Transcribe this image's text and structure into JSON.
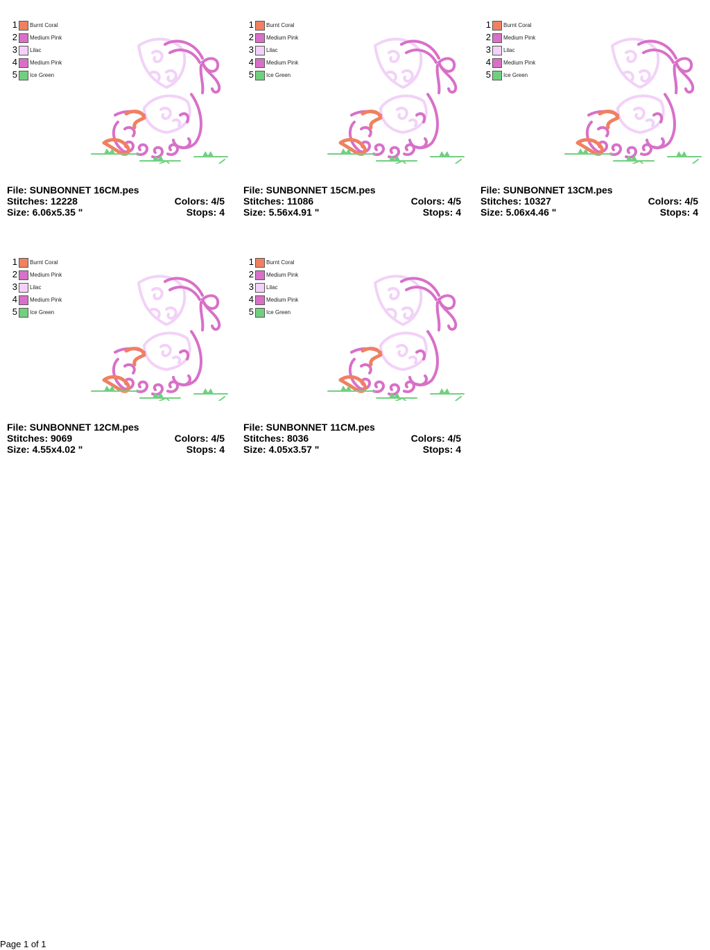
{
  "labels": {
    "file": "File:",
    "stitches": "Stitches:",
    "size": "Size:",
    "colors": "Colors:",
    "stops": "Stops:"
  },
  "designs": [
    {
      "file": "SUNBONNET 16CM.pes",
      "stitches": "12228",
      "size": "6.06x5.35 \"",
      "colors": "4/5",
      "stops": "4"
    },
    {
      "file": "SUNBONNET 15CM.pes",
      "stitches": "11086",
      "size": "5.56x4.91 \"",
      "colors": "4/5",
      "stops": "4"
    },
    {
      "file": "SUNBONNET 13CM.pes",
      "stitches": "10327",
      "size": "5.06x4.46 \"",
      "colors": "4/5",
      "stops": "4"
    },
    {
      "file": "SUNBONNET 12CM.pes",
      "stitches": "9069",
      "size": "4.55x4.02 \"",
      "colors": "4/5",
      "stops": "4"
    },
    {
      "file": "SUNBONNET 11CM.pes",
      "stitches": "8036",
      "size": "4.05x3.57 \"",
      "colors": "4/5",
      "stops": "4"
    }
  ],
  "thread_colors": [
    {
      "num": "1",
      "name": "Burnt Coral",
      "hex": "#f08060"
    },
    {
      "num": "2",
      "name": "Medium Pink",
      "hex": "#d870c8"
    },
    {
      "num": "3",
      "name": "Lilac",
      "hex": "#f2d2f8"
    },
    {
      "num": "4",
      "name": "Medium Pink",
      "hex": "#d870c8"
    },
    {
      "num": "5",
      "name": "Ice Green",
      "hex": "#70d080"
    }
  ],
  "footer": {
    "page": "Page 1 of 1"
  }
}
